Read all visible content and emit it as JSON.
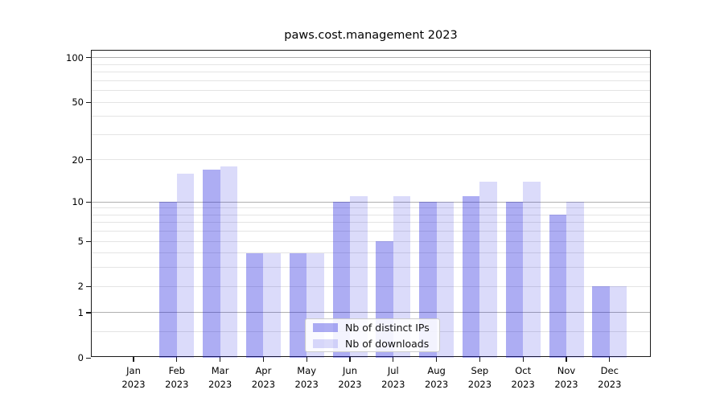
{
  "title": "paws.cost.management 2023",
  "chart_data": {
    "type": "bar",
    "title": "paws.cost.management 2023",
    "categories": [
      "Jan",
      "Feb",
      "Mar",
      "Apr",
      "May",
      "Jun",
      "Jul",
      "Aug",
      "Sep",
      "Oct",
      "Nov",
      "Dec"
    ],
    "category_year": "2023",
    "series": [
      {
        "name": "Nb of distinct IPs",
        "values": [
          0,
          10,
          17,
          4,
          4,
          10,
          5,
          10,
          11,
          10,
          8,
          2
        ],
        "color": "rgba(15,15,220,0.34)"
      },
      {
        "name": "Nb of downloads",
        "values": [
          0,
          16,
          18,
          4,
          4,
          11,
          11,
          10,
          14,
          14,
          10,
          2
        ],
        "color": "rgba(15,15,220,0.15)"
      }
    ],
    "xlabel": "",
    "ylabel": "",
    "y_axis": {
      "scale": "log1p",
      "ylim": [
        0,
        111.6
      ],
      "tick_labels": [
        0,
        1,
        2,
        5,
        10,
        20,
        50,
        100
      ],
      "major_gridlines": [
        1,
        10,
        100
      ],
      "minor_gridlines": [
        0.5,
        2,
        3,
        4,
        5,
        6,
        7,
        8,
        9,
        20,
        30,
        40,
        50,
        60,
        70,
        80,
        90
      ]
    },
    "grid": true,
    "legend_position": "lower center"
  },
  "colors": {
    "bar_distinct_ips": "rgba(15,15,220,0.34)",
    "bar_downloads": "rgba(15,15,220,0.15)",
    "grid_major": "#b0b0b0",
    "grid_minor": "#e4e4e4",
    "axis": "#1a1a1a",
    "legend_border": "#cccccc"
  }
}
